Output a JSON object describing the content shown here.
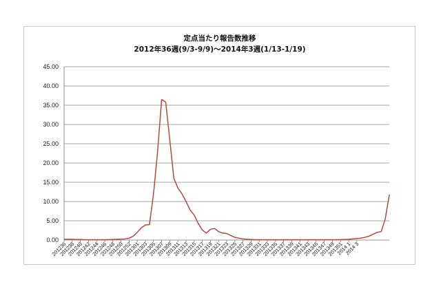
{
  "chart_data": {
    "type": "line",
    "title": "定点当たり報告数推移",
    "subtitle": "2012年36週(9/3-9/9)～2014年3週(1/13-1/19)",
    "xlabel": "",
    "ylabel": "",
    "ylim": [
      0,
      45
    ],
    "yticks": [
      "0.00",
      "5.00",
      "10.00",
      "15.00",
      "20.00",
      "25.00",
      "30.00",
      "35.00",
      "40.00",
      "45.00"
    ],
    "grid": true,
    "legend": "none",
    "line_color": "#b5493f",
    "x_tick_labels": [
      "201236",
      "201238",
      "201240",
      "201242",
      "201244",
      "201246",
      "201248",
      "201250",
      "201252",
      "201301",
      "201303",
      "201305",
      "201307",
      "201309",
      "201311",
      "201313",
      "201315",
      "201317",
      "201319",
      "201321",
      "201323",
      "201325",
      "201327",
      "201329",
      "201331",
      "201333",
      "201335",
      "201337",
      "201339",
      "201341",
      "201343",
      "201345",
      "201347",
      "201349",
      "201351",
      "2014 1",
      "2014 3"
    ],
    "series": [
      {
        "values": [
          0.2,
          0.2,
          0.2,
          0.15,
          0.15,
          0.1,
          0.1,
          0.1,
          0.1,
          0.1,
          0.1,
          0.12,
          0.15,
          0.2,
          0.25,
          0.3,
          0.5,
          1.0,
          2.0,
          3.2,
          3.9,
          4.0,
          12.0,
          23.0,
          36.5,
          35.8,
          26.0,
          16.0,
          13.5,
          12.0,
          10.0,
          7.8,
          6.5,
          4.3,
          2.6,
          1.8,
          2.8,
          3.0,
          2.2,
          1.8,
          1.7,
          1.2,
          0.7,
          0.5,
          0.3,
          0.2,
          0.15,
          0.1,
          0.1,
          0.1,
          0.1,
          0.1,
          0.1,
          0.1,
          0.1,
          0.1,
          0.1,
          0.1,
          0.1,
          0.1,
          0.1,
          0.1,
          0.1,
          0.1,
          0.1,
          0.1,
          0.1,
          0.1,
          0.12,
          0.15,
          0.2,
          0.3,
          0.4,
          0.5,
          0.7,
          1.0,
          1.5,
          2.0,
          2.2,
          5.5,
          11.8
        ]
      }
    ]
  }
}
